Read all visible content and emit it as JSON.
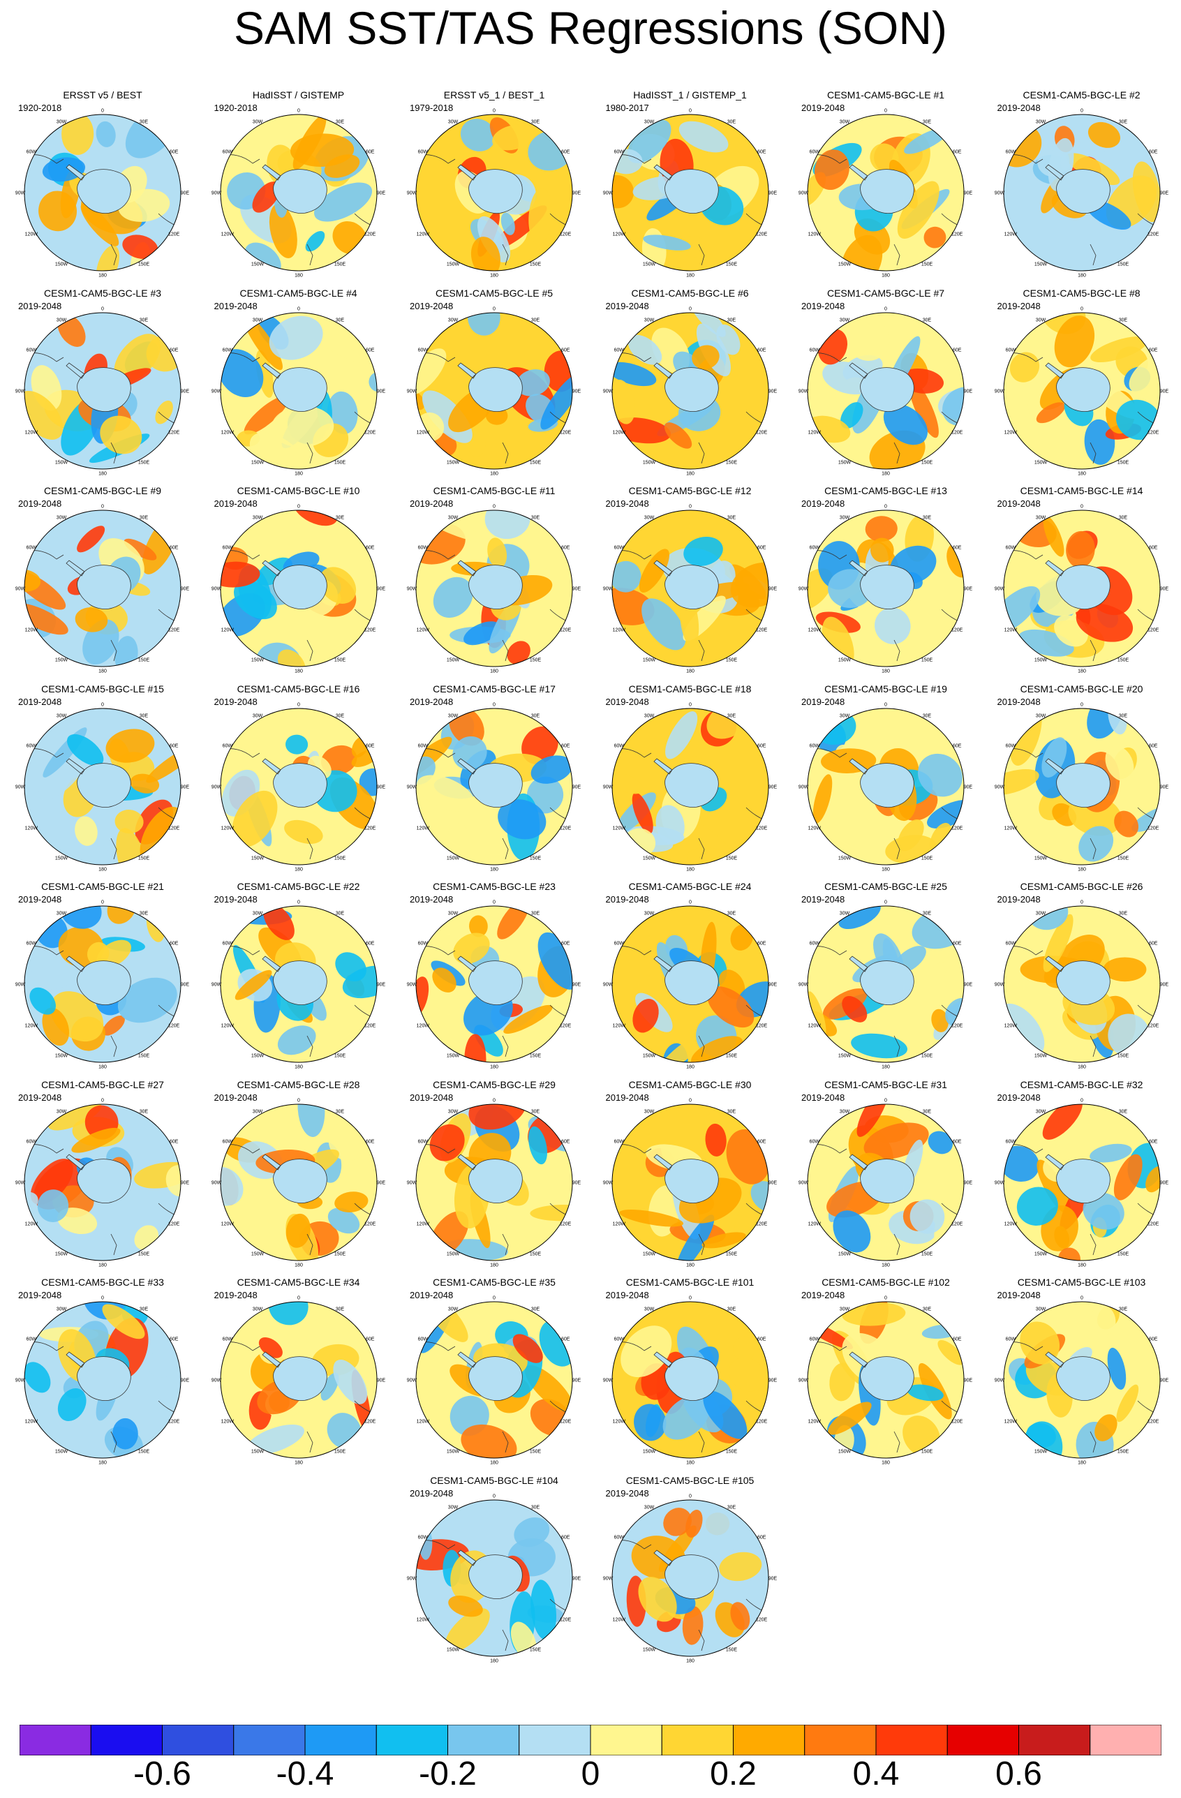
{
  "title": "SAM SST/TAS Regressions (SON)",
  "panels": [
    {
      "title": "ERSST v5 / BEST",
      "years": "1920-2018"
    },
    {
      "title": "HadISST / GISTEMP",
      "years": "1920-2018"
    },
    {
      "title": "ERSST v5_1 / BEST_1",
      "years": "1979-2018"
    },
    {
      "title": "HadISST_1 / GISTEMP_1",
      "years": "1980-2017"
    },
    {
      "title": "CESM1-CAM5-BGC-LE #1",
      "years": "2019-2048"
    },
    {
      "title": "CESM1-CAM5-BGC-LE #2",
      "years": "2019-2048"
    },
    {
      "title": "CESM1-CAM5-BGC-LE #3",
      "years": "2019-2048"
    },
    {
      "title": "CESM1-CAM5-BGC-LE #4",
      "years": "2019-2048"
    },
    {
      "title": "CESM1-CAM5-BGC-LE #5",
      "years": "2019-2048"
    },
    {
      "title": "CESM1-CAM5-BGC-LE #6",
      "years": "2019-2048"
    },
    {
      "title": "CESM1-CAM5-BGC-LE #7",
      "years": "2019-2048"
    },
    {
      "title": "CESM1-CAM5-BGC-LE #8",
      "years": "2019-2048"
    },
    {
      "title": "CESM1-CAM5-BGC-LE #9",
      "years": "2019-2048"
    },
    {
      "title": "CESM1-CAM5-BGC-LE #10",
      "years": "2019-2048"
    },
    {
      "title": "CESM1-CAM5-BGC-LE #11",
      "years": "2019-2048"
    },
    {
      "title": "CESM1-CAM5-BGC-LE #12",
      "years": "2019-2048"
    },
    {
      "title": "CESM1-CAM5-BGC-LE #13",
      "years": "2019-2048"
    },
    {
      "title": "CESM1-CAM5-BGC-LE #14",
      "years": "2019-2048"
    },
    {
      "title": "CESM1-CAM5-BGC-LE #15",
      "years": "2019-2048"
    },
    {
      "title": "CESM1-CAM5-BGC-LE #16",
      "years": "2019-2048"
    },
    {
      "title": "CESM1-CAM5-BGC-LE #17",
      "years": "2019-2048"
    },
    {
      "title": "CESM1-CAM5-BGC-LE #18",
      "years": "2019-2048"
    },
    {
      "title": "CESM1-CAM5-BGC-LE #19",
      "years": "2019-2048"
    },
    {
      "title": "CESM1-CAM5-BGC-LE #20",
      "years": "2019-2048"
    },
    {
      "title": "CESM1-CAM5-BGC-LE #21",
      "years": "2019-2048"
    },
    {
      "title": "CESM1-CAM5-BGC-LE #22",
      "years": "2019-2048"
    },
    {
      "title": "CESM1-CAM5-BGC-LE #23",
      "years": "2019-2048"
    },
    {
      "title": "CESM1-CAM5-BGC-LE #24",
      "years": "2019-2048"
    },
    {
      "title": "CESM1-CAM5-BGC-LE #25",
      "years": "2019-2048"
    },
    {
      "title": "CESM1-CAM5-BGC-LE #26",
      "years": "2019-2048"
    },
    {
      "title": "CESM1-CAM5-BGC-LE #27",
      "years": "2019-2048"
    },
    {
      "title": "CESM1-CAM5-BGC-LE #28",
      "years": "2019-2048"
    },
    {
      "title": "CESM1-CAM5-BGC-LE #29",
      "years": "2019-2048"
    },
    {
      "title": "CESM1-CAM5-BGC-LE #30",
      "years": "2019-2048"
    },
    {
      "title": "CESM1-CAM5-BGC-LE #31",
      "years": "2019-2048"
    },
    {
      "title": "CESM1-CAM5-BGC-LE #32",
      "years": "2019-2048"
    },
    {
      "title": "CESM1-CAM5-BGC-LE #33",
      "years": "2019-2048"
    },
    {
      "title": "CESM1-CAM5-BGC-LE #34",
      "years": "2019-2048"
    },
    {
      "title": "CESM1-CAM5-BGC-LE #35",
      "years": "2019-2048"
    },
    {
      "title": "CESM1-CAM5-BGC-LE #101",
      "years": "2019-2048"
    },
    {
      "title": "CESM1-CAM5-BGC-LE #102",
      "years": "2019-2048"
    },
    {
      "title": "CESM1-CAM5-BGC-LE #103",
      "years": "2019-2048"
    },
    {
      "title": "CESM1-CAM5-BGC-LE #104",
      "years": "2019-2048"
    },
    {
      "title": "CESM1-CAM5-BGC-LE #105",
      "years": "2019-2048"
    }
  ],
  "lon_labels": [
    "0",
    "30E",
    "60E",
    "90E",
    "120E",
    "150E",
    "180",
    "150W",
    "120W",
    "90W",
    "60W",
    "30W"
  ],
  "colorbar": {
    "colors": [
      "#8a2be2",
      "#1a0df0",
      "#2f4fe0",
      "#3a78e8",
      "#1e9af5",
      "#11bff0",
      "#78c6ee",
      "#b4dff3",
      "#fff68f",
      "#ffd633",
      "#ffaa00",
      "#ff7a10",
      "#ff3a0a",
      "#e60000",
      "#c81c1c",
      "#ffb0b0"
    ],
    "labels": [
      "-0.6",
      "-0.4",
      "-0.2",
      "0",
      "0.2",
      "0.4",
      "0.6"
    ],
    "label_values": [
      -0.6,
      -0.4,
      -0.2,
      0,
      0.2,
      0.4,
      0.6
    ],
    "boundaries": [
      -0.7,
      -0.6,
      -0.5,
      -0.4,
      -0.3,
      -0.2,
      -0.1,
      0,
      0.1,
      0.2,
      0.3,
      0.4,
      0.5,
      0.6,
      0.7
    ]
  }
}
